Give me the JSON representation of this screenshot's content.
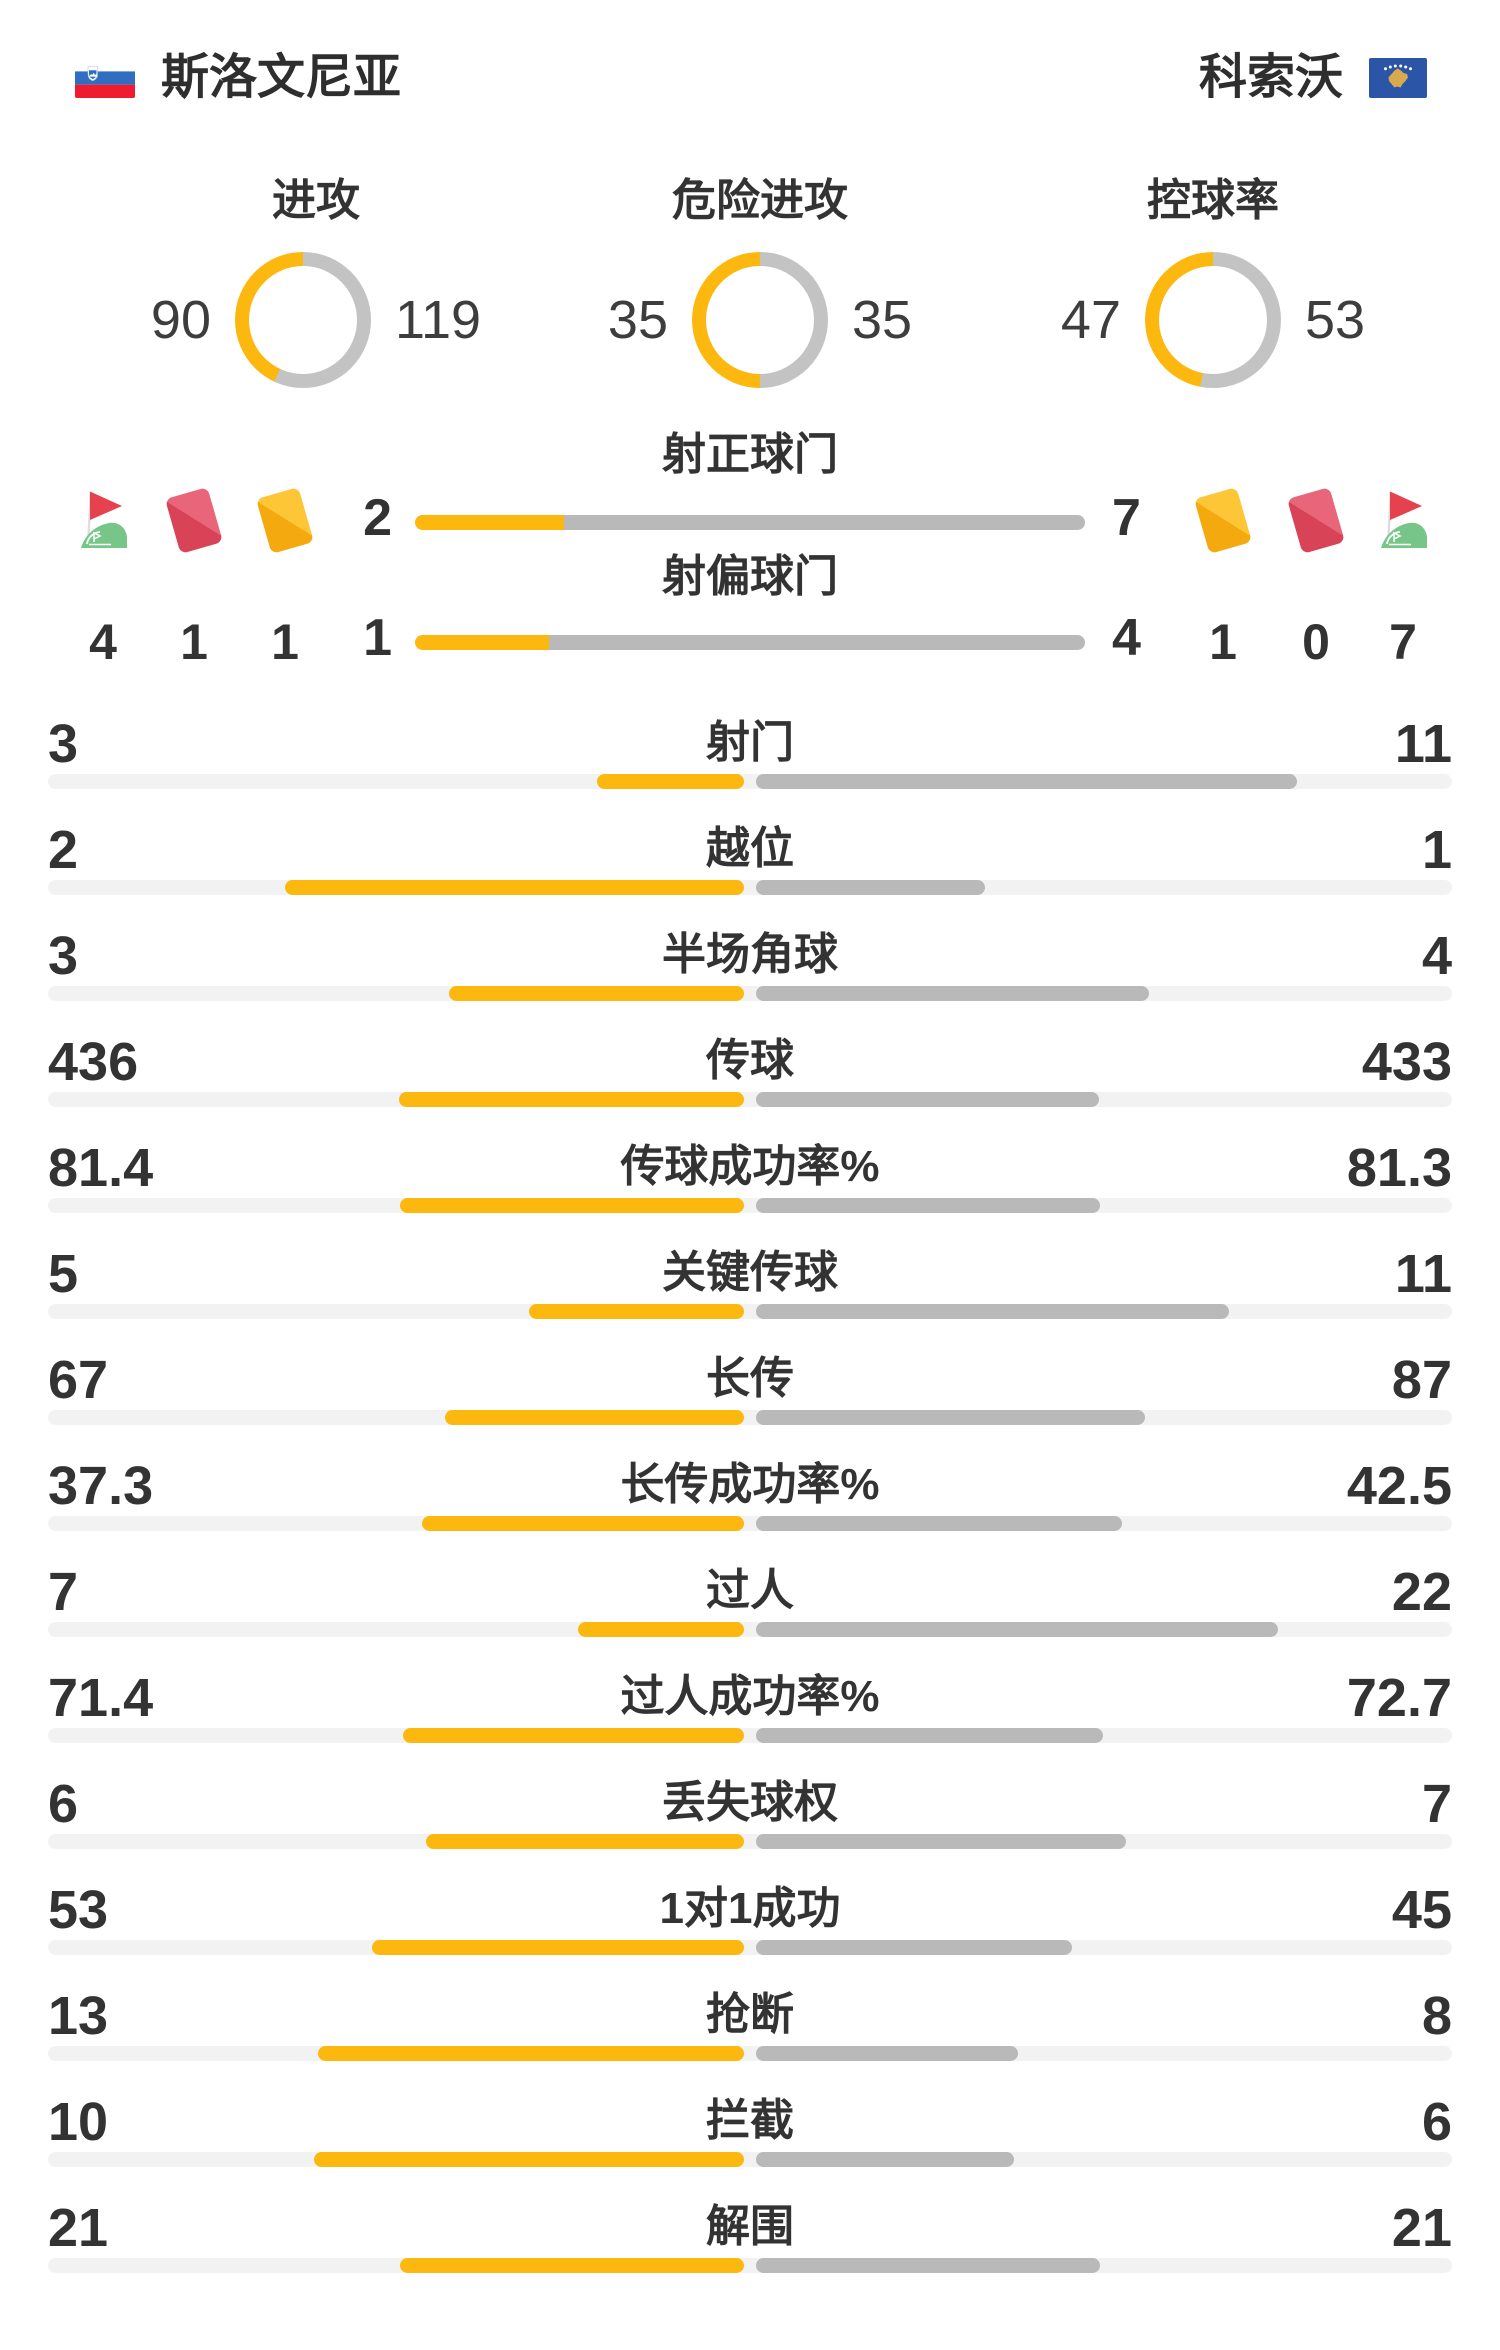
{
  "header": {
    "home_team": {
      "name": "斯洛文尼亚",
      "flag": "slovenia-flag"
    },
    "away_team": {
      "name": "科索沃",
      "flag": "kosovo-flag"
    }
  },
  "colors": {
    "home_bar": "#fcb80f",
    "away_bar": "#b9b9b9",
    "track": "#f2f2f2",
    "donut_away": "#c3c3c3",
    "text": "#333333",
    "yellow_card": "#fbbc1f",
    "red_card": "#dd4b5e",
    "corner_flag_red": "#e5414e",
    "corner_flag_green": "#77c688"
  },
  "donuts": [
    {
      "title": "进攻",
      "home": 90,
      "away": 119
    },
    {
      "title": "危险进攻",
      "home": 35,
      "away": 35
    },
    {
      "title": "控球率",
      "home": 47,
      "away": 53
    }
  ],
  "shot_rows": [
    {
      "label": "射正球门",
      "home": 2,
      "away": 7
    },
    {
      "label": "射偏球门",
      "home": 1,
      "away": 4
    }
  ],
  "discipline": {
    "home": [
      {
        "icon": "corner-flag",
        "count": 4
      },
      {
        "icon": "red-card",
        "count": 1
      },
      {
        "icon": "yellow-card",
        "count": 1
      }
    ],
    "away": [
      {
        "icon": "yellow-card",
        "count": 1
      },
      {
        "icon": "red-card",
        "count": 0
      },
      {
        "icon": "corner-flag",
        "count": 7
      }
    ]
  },
  "stats": [
    {
      "label": "射门",
      "home": 3,
      "away": 11
    },
    {
      "label": "越位",
      "home": 2,
      "away": 1
    },
    {
      "label": "半场角球",
      "home": 3,
      "away": 4
    },
    {
      "label": "传球",
      "home": 436,
      "away": 433
    },
    {
      "label": "传球成功率%",
      "home": 81.4,
      "away": 81.3
    },
    {
      "label": "关键传球",
      "home": 5,
      "away": 11
    },
    {
      "label": "长传",
      "home": 67,
      "away": 87
    },
    {
      "label": "长传成功率%",
      "home": 37.3,
      "away": 42.5
    },
    {
      "label": "过人",
      "home": 7,
      "away": 22
    },
    {
      "label": "过人成功率%",
      "home": 71.4,
      "away": 72.7
    },
    {
      "label": "丢失球权",
      "home": 6,
      "away": 7
    },
    {
      "label": "1对1成功",
      "home": 53,
      "away": 45
    },
    {
      "label": "抢断",
      "home": 13,
      "away": 8
    },
    {
      "label": "拦截",
      "home": 10,
      "away": 6
    },
    {
      "label": "解围",
      "home": 21,
      "away": 21
    }
  ],
  "chart_data": [
    {
      "type": "pie",
      "title": "进攻",
      "categories": [
        "斯洛文尼亚",
        "科索沃"
      ],
      "values": [
        90,
        119
      ]
    },
    {
      "type": "pie",
      "title": "危险进攻",
      "categories": [
        "斯洛文尼亚",
        "科索沃"
      ],
      "values": [
        35,
        35
      ]
    },
    {
      "type": "pie",
      "title": "控球率",
      "categories": [
        "斯洛文尼亚",
        "科索沃"
      ],
      "values": [
        47,
        53
      ]
    },
    {
      "type": "bar",
      "title": "比赛统计对比",
      "categories": [
        "射正球门",
        "射偏球门",
        "射门",
        "越位",
        "半场角球",
        "传球",
        "传球成功率%",
        "关键传球",
        "长传",
        "长传成功率%",
        "过人",
        "过人成功率%",
        "丢失球权",
        "1对1成功",
        "抢断",
        "拦截",
        "解围"
      ],
      "series": [
        {
          "name": "斯洛文尼亚",
          "values": [
            2,
            1,
            3,
            2,
            3,
            436,
            81.4,
            5,
            67,
            37.3,
            7,
            71.4,
            6,
            53,
            13,
            10,
            21
          ]
        },
        {
          "name": "科索沃",
          "values": [
            7,
            4,
            11,
            1,
            4,
            433,
            81.3,
            11,
            87,
            42.5,
            22,
            72.7,
            7,
            45,
            8,
            6,
            21
          ]
        }
      ],
      "legend_position": "none",
      "grid": false
    },
    {
      "type": "bar",
      "title": "角球/红牌/黄牌",
      "categories": [
        "角球",
        "红牌",
        "黄牌"
      ],
      "series": [
        {
          "name": "斯洛文尼亚",
          "values": [
            4,
            1,
            1
          ]
        },
        {
          "name": "科索沃",
          "values": [
            7,
            0,
            1
          ]
        }
      ]
    }
  ]
}
